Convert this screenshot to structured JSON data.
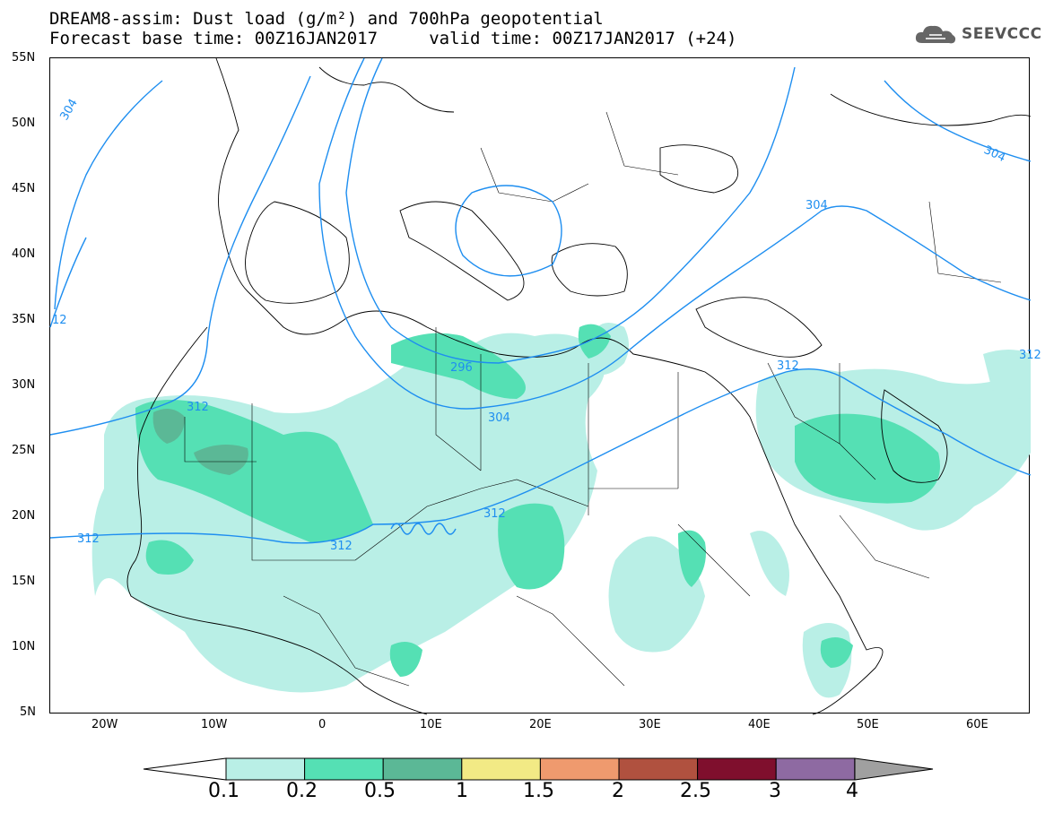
{
  "header": {
    "line1": "DREAM8-assim: Dust load (g/m²) and 700hPa geopotential",
    "line2": "Forecast base time: 00Z16JAN2017     valid time: 00Z17JAN2017 (+24)"
  },
  "logo": {
    "icon": "cloud-icon",
    "text": "SEEVCCC"
  },
  "axes": {
    "lat_labels": [
      "55N",
      "50N",
      "45N",
      "40N",
      "35N",
      "30N",
      "25N",
      "20N",
      "15N",
      "10N",
      "5N"
    ],
    "lon_labels": [
      "20W",
      "10W",
      "0",
      "10E",
      "20E",
      "30E",
      "40E",
      "50E",
      "60E"
    ],
    "lon_range": [
      -25,
      65
    ],
    "lat_range": [
      5,
      55
    ]
  },
  "contours": {
    "labels": [
      "304",
      "304",
      "304",
      "312",
      "312",
      "312",
      "312",
      "312",
      "296",
      "304",
      "312",
      "12"
    ]
  },
  "colorbar": {
    "colors": [
      "#b9efe6",
      "#55e0b4",
      "#5bb896",
      "#f2ea85",
      "#ef9a6e",
      "#b0513f",
      "#7f0f2d",
      "#8e6aa2",
      "#a0a0a0"
    ],
    "labels": [
      "0.1",
      "0.2",
      "0.5",
      "1",
      "1.5",
      "2",
      "2.5",
      "3",
      "4"
    ]
  }
}
